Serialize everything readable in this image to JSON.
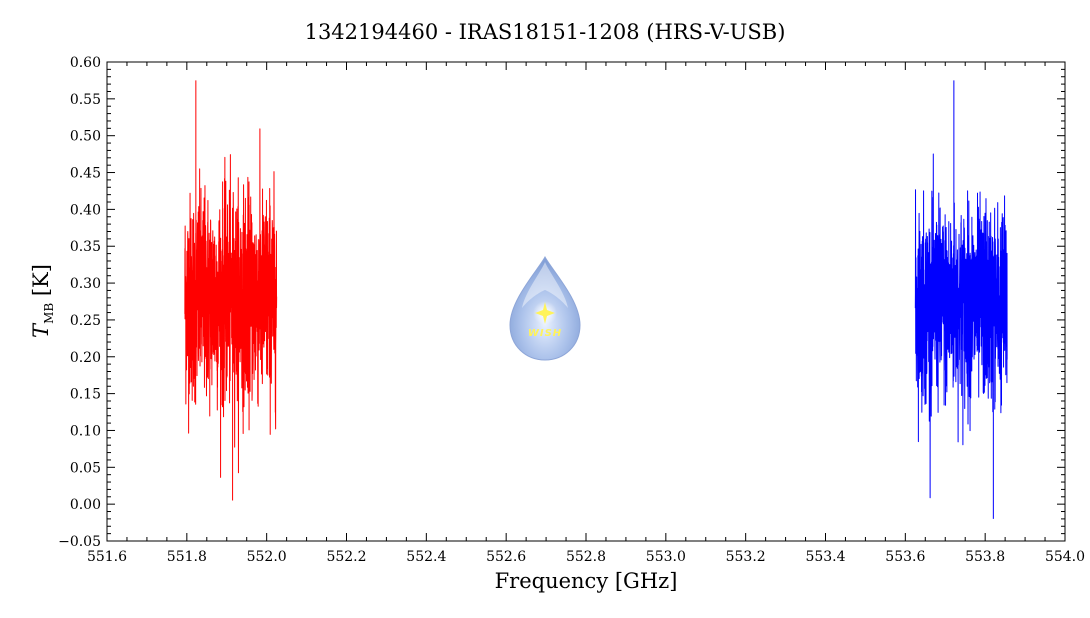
{
  "chart_data": {
    "type": "line",
    "title": "1342194460 - IRAS18151-1208 (HRS-V-USB)",
    "xlabel": "Frequency [GHz]",
    "ylabel": {
      "symbol": "T",
      "subscript": "MB",
      "unit": "[K]"
    },
    "xlim": [
      551.6,
      554.0
    ],
    "ylim": [
      -0.05,
      0.6
    ],
    "x_ticks": [
      "551.6",
      "551.8",
      "552.0",
      "552.2",
      "552.4",
      "552.6",
      "552.8",
      "553.0",
      "553.2",
      "553.4",
      "553.6",
      "553.8",
      "554.0"
    ],
    "y_ticks": [
      "−0.05",
      "0.00",
      "0.05",
      "0.10",
      "0.15",
      "0.20",
      "0.25",
      "0.30",
      "0.35",
      "0.40",
      "0.45",
      "0.50",
      "0.55",
      "0.60"
    ],
    "grid": false,
    "legend": "none",
    "series": [
      {
        "color": "#ff0000",
        "x_range": [
          551.795,
          552.025
        ],
        "mean": 0.28,
        "noise_std": 0.07,
        "min": 0.005,
        "max": 0.575
      },
      {
        "color": "#0000ff",
        "x_range": [
          553.625,
          553.855
        ],
        "mean": 0.27,
        "noise_std": 0.065,
        "min": -0.02,
        "max": 0.575
      }
    ]
  },
  "watermark": {
    "label": "WISH",
    "icon": "water-drop-logo-icon"
  }
}
